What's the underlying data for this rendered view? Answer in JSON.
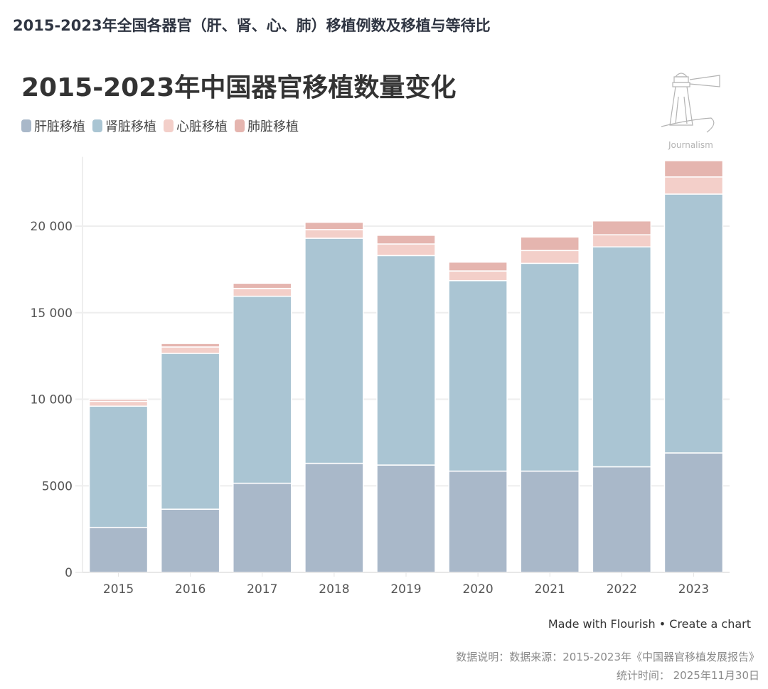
{
  "page_header": "2015-2023年全国各器官（肝、肾、心、肺）移植例数及移植与等待比",
  "credit": {
    "made_with": "Made with Flourish",
    "separator": "•",
    "create": "Create a chart"
  },
  "footnotes": {
    "source": "数据说明：数据来源：2015-2023年《中国器官移植发展报告》",
    "date": "统计时间： 2025年11月30日"
  },
  "watermark_text": "Journalism",
  "chart_data": {
    "type": "bar",
    "stacked": true,
    "title": "2015-2023年中国器官移植数量变化",
    "xlabel": "",
    "ylabel": "",
    "ylim": [
      0,
      24000
    ],
    "yticks": [
      0,
      5000,
      10000,
      15000,
      20000
    ],
    "ytick_labels": [
      "0",
      "5000",
      "10 000",
      "15 000",
      "20 000"
    ],
    "grid": true,
    "legend_position": "top-left",
    "categories": [
      "2015",
      "2016",
      "2017",
      "2018",
      "2019",
      "2020",
      "2021",
      "2022",
      "2023"
    ],
    "series": [
      {
        "name": "肝脏移植",
        "color": "#a9b8c9",
        "values": [
          2600,
          3650,
          5150,
          6300,
          6200,
          5850,
          5850,
          6100,
          6900
        ]
      },
      {
        "name": "肾脏移植",
        "color": "#aac5d3",
        "values": [
          7000,
          9000,
          10800,
          13000,
          12100,
          11000,
          12000,
          12700,
          14950
        ]
      },
      {
        "name": "心脏移植",
        "color": "#f3cfc9",
        "values": [
          280,
          370,
          450,
          500,
          670,
          560,
          740,
          700,
          990
        ]
      },
      {
        "name": "肺脏移植",
        "color": "#e5b5af",
        "values": [
          120,
          200,
          300,
          420,
          500,
          510,
          780,
          800,
          940
        ]
      }
    ]
  }
}
